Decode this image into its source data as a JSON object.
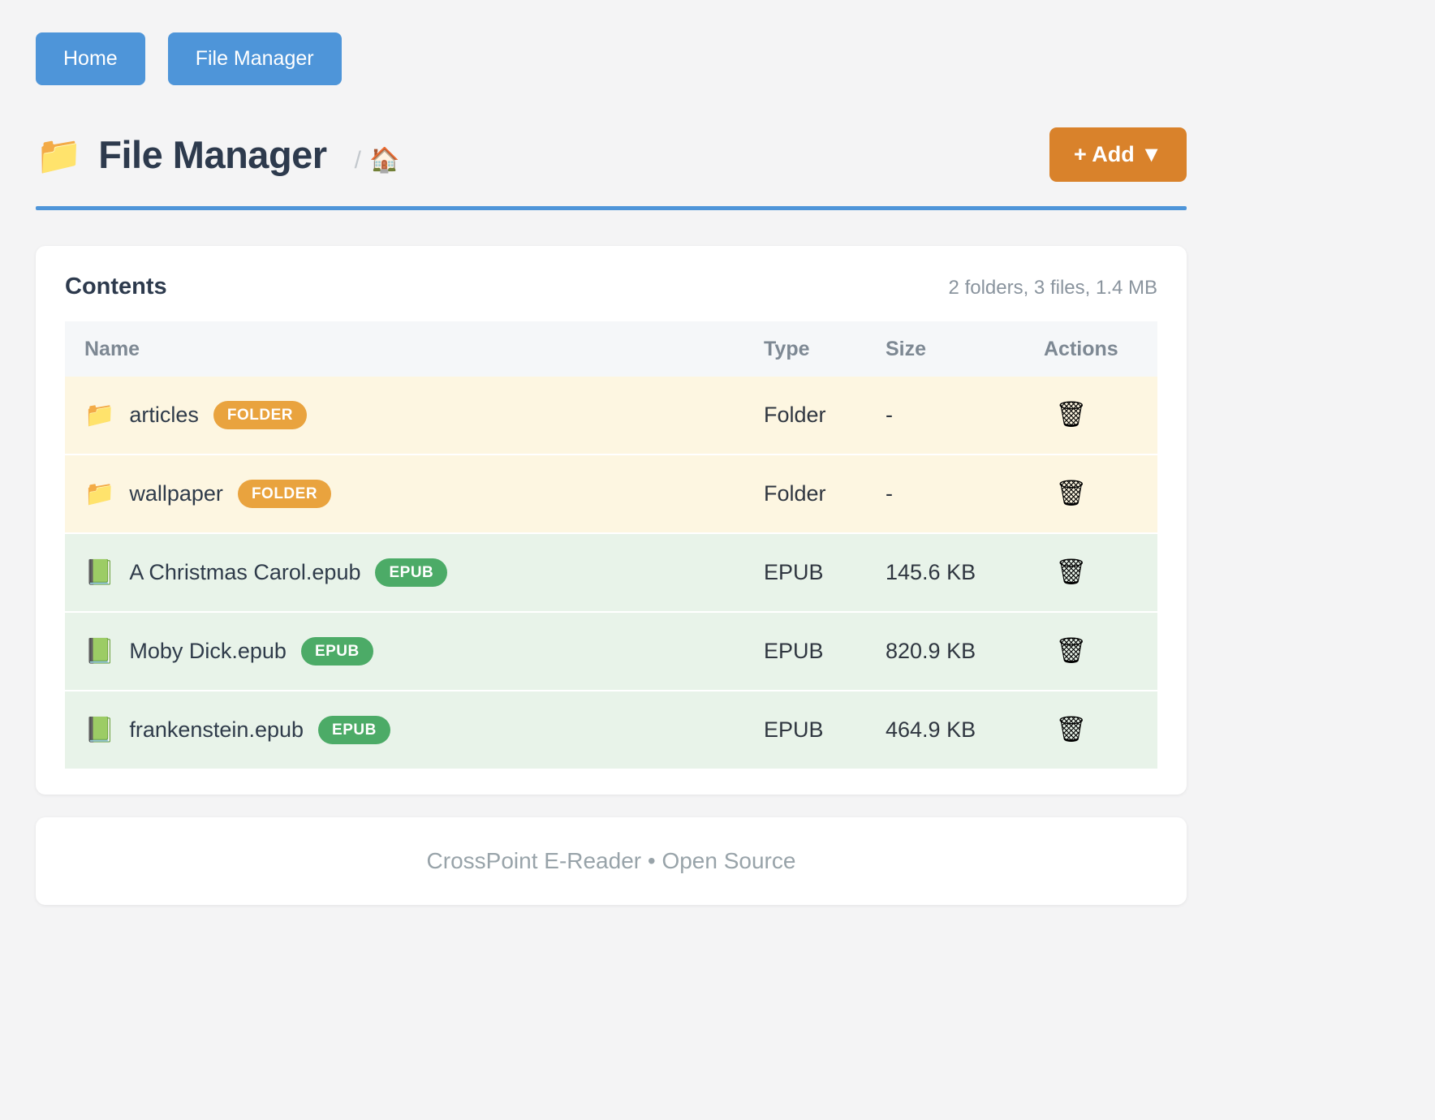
{
  "nav": {
    "buttons": [
      {
        "label": "Home"
      },
      {
        "label": "File Manager"
      }
    ]
  },
  "header": {
    "title_icon": "📁",
    "title": "File Manager",
    "breadcrumb_separator": "/",
    "breadcrumb_home_icon": "🏠",
    "add_button_label": "+ Add ▼"
  },
  "contents": {
    "title": "Contents",
    "summary": "2 folders, 3 files, 1.4 MB",
    "columns": {
      "name": "Name",
      "type": "Type",
      "size": "Size",
      "actions": "Actions"
    },
    "rows": [
      {
        "icon": "📁",
        "name": "articles",
        "badge": "FOLDER",
        "type": "Folder",
        "size": "-",
        "action_icon": "🗑"
      },
      {
        "icon": "📁",
        "name": "wallpaper",
        "badge": "FOLDER",
        "type": "Folder",
        "size": "-",
        "action_icon": "🗑"
      },
      {
        "icon": "📗",
        "name": "A Christmas Carol.epub",
        "badge": "EPUB",
        "type": "EPUB",
        "size": "145.6 KB",
        "action_icon": "🗑"
      },
      {
        "icon": "📗",
        "name": "Moby Dick.epub",
        "badge": "EPUB",
        "type": "EPUB",
        "size": "820.9 KB",
        "action_icon": "🗑"
      },
      {
        "icon": "📗",
        "name": "frankenstein.epub",
        "badge": "EPUB",
        "type": "EPUB",
        "size": "464.9 KB",
        "action_icon": "🗑"
      }
    ]
  },
  "footer": {
    "text": "CrossPoint E-Reader • Open Source"
  },
  "colors": {
    "accent_blue": "#4e95d9",
    "accent_orange": "#d9822b",
    "badge_folder": "#e9a33e",
    "badge_epub": "#4cab67",
    "row_folder_bg": "#fdf6e1",
    "row_epub_bg": "#e8f3e9"
  }
}
